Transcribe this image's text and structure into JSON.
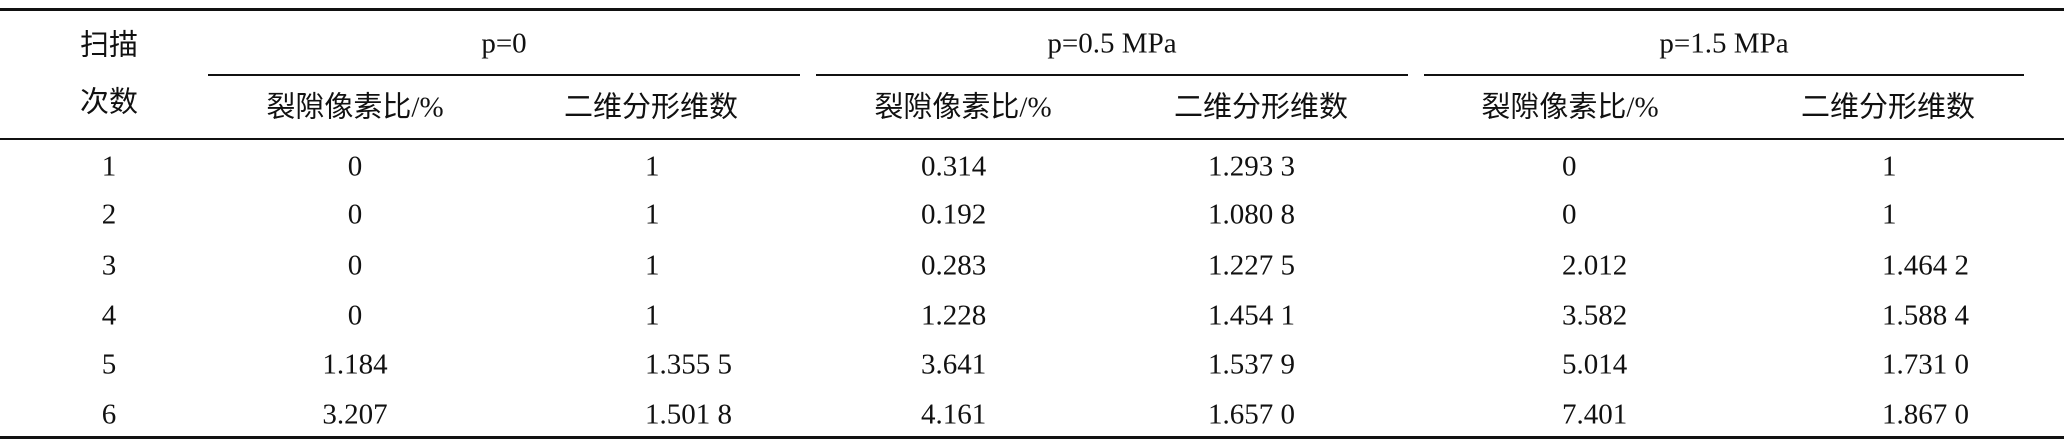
{
  "table": {
    "row_header": [
      "扫描",
      "次数"
    ],
    "groups": [
      "p=0",
      "p=0.5 MPa",
      "p=1.5 MPa"
    ],
    "subheaders": [
      "裂隙像素比/%",
      "二维分形维数",
      "裂隙像素比/%",
      "二维分形维数",
      "裂隙像素比/%",
      "二维分形维数"
    ],
    "rows": [
      [
        "1",
        "0",
        "1",
        "0.314",
        "1.293 3",
        "0",
        "1"
      ],
      [
        "2",
        "0",
        "1",
        "0.192",
        "1.080 8",
        "0",
        "1"
      ],
      [
        "3",
        "0",
        "1",
        "0.283",
        "1.227 5",
        "2.012",
        "1.464 2"
      ],
      [
        "4",
        "0",
        "1",
        "1.228",
        "1.454 1",
        "3.582",
        "1.588 4"
      ],
      [
        "5",
        "1.184",
        "1.355 5",
        "3.641",
        "1.537 9",
        "5.014",
        "1.731 0"
      ],
      [
        "6",
        "3.207",
        "1.501 8",
        "4.161",
        "1.657 0",
        "7.401",
        "1.867 0"
      ]
    ]
  }
}
